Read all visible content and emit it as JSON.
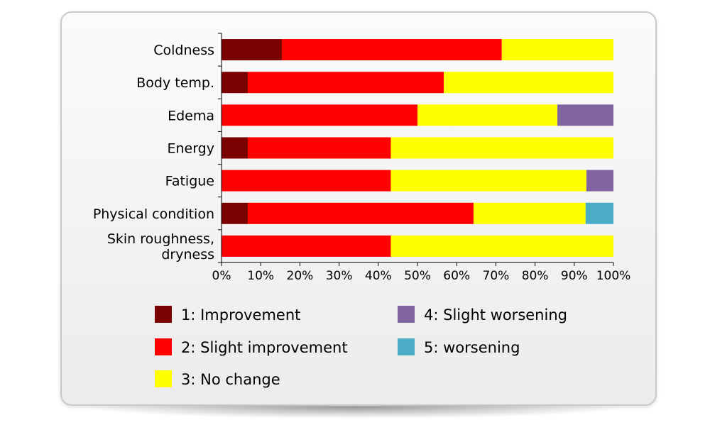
{
  "chart_data": {
    "type": "bar",
    "orientation": "horizontal",
    "stacked": true,
    "percent": true,
    "categories": [
      [
        "Coldness"
      ],
      [
        "Body temp."
      ],
      [
        "Edema"
      ],
      [
        "Energy"
      ],
      [
        "Fatigue"
      ],
      [
        "Physical condition"
      ],
      [
        "Skin roughness,",
        "dryness"
      ]
    ],
    "series": [
      {
        "name": "1: Improvement",
        "color": "#7b0000",
        "values": [
          15.4,
          6.7,
          0,
          6.7,
          0,
          6.7,
          0
        ]
      },
      {
        "name": "2: Slight improvement",
        "color": "#ff0000",
        "values": [
          56.1,
          50.0,
          50.0,
          36.5,
          43.2,
          57.6,
          43.2
        ]
      },
      {
        "name": "3: No change",
        "color": "#ffff00",
        "values": [
          28.5,
          43.3,
          35.7,
          56.8,
          49.9,
          28.6,
          56.8
        ]
      },
      {
        "name": "4: Slight worsening",
        "color": "#8064a2",
        "values": [
          0,
          0,
          14.3,
          0,
          6.9,
          0,
          0
        ]
      },
      {
        "name": "5: worsening",
        "color": "#4bacc6",
        "values": [
          0,
          0,
          0,
          0,
          0,
          7.1,
          0
        ]
      }
    ],
    "x_ticks": [
      "0%",
      "10%",
      "20%",
      "30%",
      "40%",
      "50%",
      "60%",
      "70%",
      "80%",
      "90%",
      "100%"
    ],
    "xlim": [
      0,
      100
    ],
    "grid": false,
    "legend_position": "bottom"
  }
}
